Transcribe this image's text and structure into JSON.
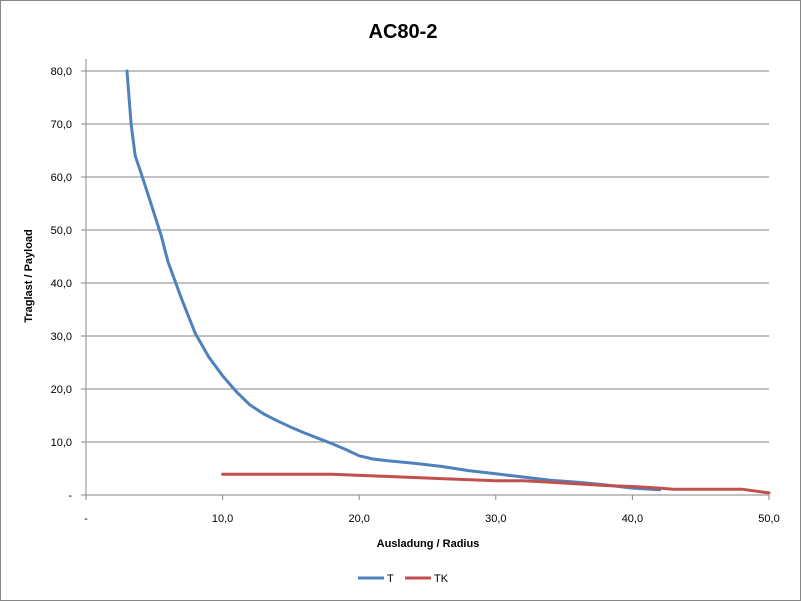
{
  "chart_data": {
    "type": "line",
    "title": "AC80-2",
    "xlabel": "Ausladung / Radius",
    "ylabel": "Traglast / Payload",
    "xlim": [
      0,
      50
    ],
    "ylim": [
      0,
      80
    ],
    "x_ticks": [
      "-",
      "10,0",
      "20,0",
      "30,0",
      "40,0",
      "50,0"
    ],
    "y_ticks": [
      "-",
      "10,0",
      "20,0",
      "30,0",
      "40,0",
      "50,0",
      "60,0",
      "70,0",
      "80,0"
    ],
    "grid": "horizontal",
    "legend_position": "bottom",
    "series": [
      {
        "name": "T",
        "color": "#4F81BD",
        "points": [
          [
            3.0,
            80.0
          ],
          [
            3.3,
            70.0
          ],
          [
            3.6,
            64.0
          ],
          [
            4.0,
            61.0
          ],
          [
            4.5,
            57.0
          ],
          [
            5.0,
            53.0
          ],
          [
            5.5,
            49.0
          ],
          [
            6.0,
            44.0
          ],
          [
            7.0,
            37.0
          ],
          [
            8.0,
            30.5
          ],
          [
            9.0,
            26.0
          ],
          [
            10.0,
            22.5
          ],
          [
            11.0,
            19.5
          ],
          [
            12.0,
            17.0
          ],
          [
            13.0,
            15.3
          ],
          [
            14.0,
            14.0
          ],
          [
            15.0,
            12.8
          ],
          [
            16.0,
            11.7
          ],
          [
            17.0,
            10.7
          ],
          [
            18.0,
            9.7
          ],
          [
            19.0,
            8.6
          ],
          [
            20.0,
            7.4
          ],
          [
            21.0,
            6.8
          ],
          [
            22.0,
            6.5
          ],
          [
            24.0,
            6.0
          ],
          [
            26.0,
            5.4
          ],
          [
            28.0,
            4.6
          ],
          [
            30.0,
            4.0
          ],
          [
            32.0,
            3.4
          ],
          [
            34.0,
            2.8
          ],
          [
            36.0,
            2.4
          ],
          [
            38.0,
            1.9
          ],
          [
            40.0,
            1.3
          ],
          [
            42.0,
            1.0
          ]
        ]
      },
      {
        "name": "TK",
        "color": "#C0504D",
        "points": [
          [
            10.0,
            3.9
          ],
          [
            14.0,
            3.9
          ],
          [
            18.0,
            3.9
          ],
          [
            22.0,
            3.5
          ],
          [
            26.0,
            3.1
          ],
          [
            30.0,
            2.7
          ],
          [
            32.0,
            2.7
          ],
          [
            34.0,
            2.4
          ],
          [
            36.0,
            2.1
          ],
          [
            38.0,
            1.8
          ],
          [
            40.0,
            1.6
          ],
          [
            42.0,
            1.3
          ],
          [
            43.0,
            1.1
          ],
          [
            45.0,
            1.1
          ],
          [
            48.0,
            1.1
          ],
          [
            50.0,
            0.4
          ]
        ]
      }
    ]
  }
}
